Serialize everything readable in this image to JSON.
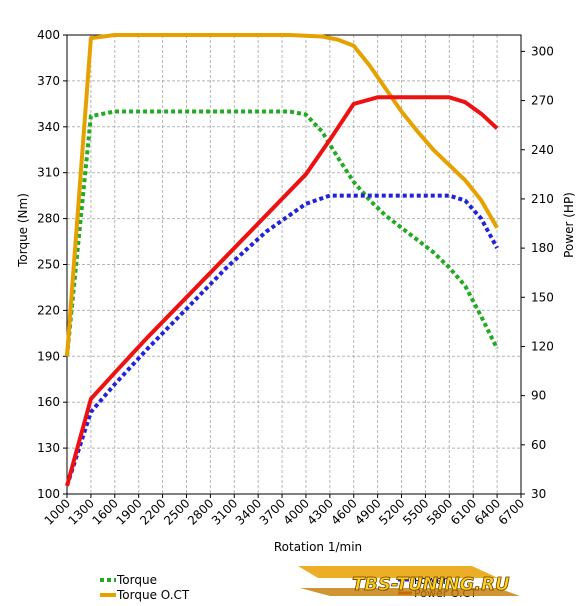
{
  "chart_data": {
    "type": "line",
    "title": "",
    "xlabel": "Rotation 1/min",
    "ylabel_left": "Torque (Nm)",
    "ylabel_right": "Power (HP)",
    "xlim": [
      1000,
      6700
    ],
    "ylim_left": [
      100,
      400
    ],
    "ylim_right": [
      30,
      310
    ],
    "x_ticks": [
      1000,
      1300,
      1600,
      1900,
      2200,
      2500,
      2800,
      3100,
      3400,
      3700,
      4000,
      4300,
      4600,
      4900,
      5200,
      5500,
      5800,
      6100,
      6400,
      6700
    ],
    "y_left_ticks": [
      100,
      130,
      160,
      190,
      220,
      250,
      280,
      310,
      340,
      370,
      400
    ],
    "y_right_ticks": [
      30,
      60,
      90,
      120,
      150,
      180,
      210,
      240,
      270,
      300
    ],
    "grid": true,
    "legend_position": "bottom-left",
    "series": [
      {
        "name": "Torque",
        "axis": "left",
        "color": "#22aa22",
        "style": "dotted",
        "points": [
          [
            1000,
            190
          ],
          [
            1300,
            347
          ],
          [
            1600,
            350
          ],
          [
            2000,
            350
          ],
          [
            2500,
            350
          ],
          [
            3000,
            350
          ],
          [
            3500,
            350
          ],
          [
            3800,
            350
          ],
          [
            4000,
            348
          ],
          [
            4200,
            337
          ],
          [
            4400,
            320
          ],
          [
            4600,
            304
          ],
          [
            4800,
            292
          ],
          [
            5000,
            282
          ],
          [
            5200,
            274
          ],
          [
            5400,
            266
          ],
          [
            5600,
            258
          ],
          [
            5800,
            248
          ],
          [
            6000,
            236
          ],
          [
            6200,
            216
          ],
          [
            6400,
            195
          ]
        ]
      },
      {
        "name": "Torque O.CT",
        "axis": "left",
        "color": "#e6a000",
        "style": "solid",
        "points": [
          [
            1000,
            190
          ],
          [
            1300,
            398
          ],
          [
            1600,
            400
          ],
          [
            2000,
            400
          ],
          [
            3000,
            400
          ],
          [
            3800,
            400
          ],
          [
            4200,
            399
          ],
          [
            4400,
            397
          ],
          [
            4600,
            393
          ],
          [
            4800,
            380
          ],
          [
            5000,
            365
          ],
          [
            5200,
            350
          ],
          [
            5400,
            337
          ],
          [
            5600,
            325
          ],
          [
            5800,
            315
          ],
          [
            6000,
            305
          ],
          [
            6200,
            292
          ],
          [
            6400,
            274
          ]
        ]
      },
      {
        "name": "Power",
        "axis": "right",
        "color": "#2222dd",
        "style": "dotted",
        "points": [
          [
            1000,
            35
          ],
          [
            1300,
            80
          ],
          [
            1600,
            97
          ],
          [
            2000,
            118
          ],
          [
            2500,
            143
          ],
          [
            3000,
            168
          ],
          [
            3500,
            190
          ],
          [
            4000,
            207
          ],
          [
            4300,
            212
          ],
          [
            4600,
            212
          ],
          [
            5000,
            212
          ],
          [
            5500,
            212
          ],
          [
            5800,
            212
          ],
          [
            6000,
            209
          ],
          [
            6200,
            198
          ],
          [
            6400,
            180
          ]
        ]
      },
      {
        "name": "Power O.CT",
        "axis": "right",
        "color": "#ee1111",
        "style": "solid",
        "points": [
          [
            1000,
            35
          ],
          [
            1300,
            88
          ],
          [
            1600,
            104
          ],
          [
            2000,
            125
          ],
          [
            2500,
            150
          ],
          [
            3000,
            175
          ],
          [
            3500,
            200
          ],
          [
            4000,
            225
          ],
          [
            4300,
            246
          ],
          [
            4600,
            268
          ],
          [
            4900,
            272
          ],
          [
            5200,
            272
          ],
          [
            5500,
            272
          ],
          [
            5800,
            272
          ],
          [
            6000,
            269
          ],
          [
            6200,
            262
          ],
          [
            6400,
            253
          ]
        ]
      }
    ]
  },
  "legend": {
    "items": [
      {
        "label": "Torque",
        "color": "#22aa22",
        "style": "dotted"
      },
      {
        "label": "Torque O.CT",
        "color": "#e6a000",
        "style": "solid"
      }
    ],
    "right_items": [
      {
        "label": "Power",
        "color": "#2222dd",
        "style": "dotted"
      },
      {
        "label": "Power O.CT",
        "color": "#ee1111",
        "style": "solid"
      }
    ]
  },
  "logo": {
    "text": "TBS-TUNING.RU"
  }
}
